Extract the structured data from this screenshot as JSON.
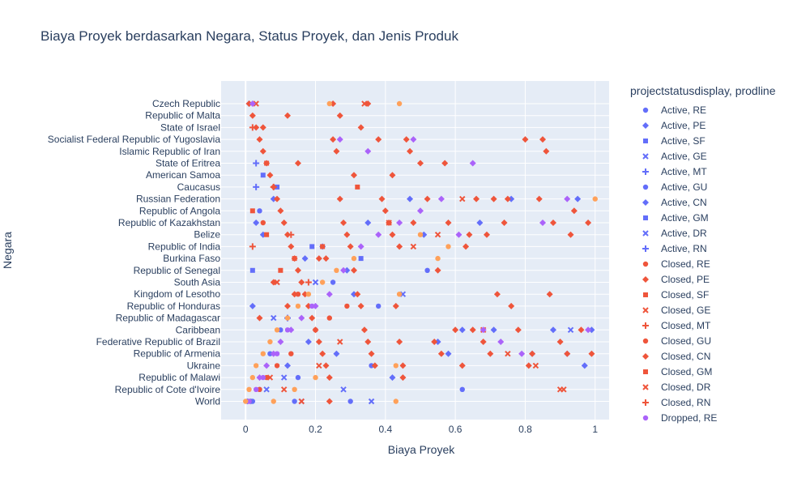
{
  "chart_data": {
    "type": "scatter",
    "title": "Biaya Proyek berdasarkan Negara, Status Proyek, dan Jenis Produk",
    "xlabel": "Biaya Proyek",
    "ylabel": "Negara",
    "xlim": [
      -0.07,
      1.04
    ],
    "x_ticks": [
      0,
      0.2,
      0.4,
      0.6,
      0.8,
      1
    ],
    "x_tick_labels": [
      "0",
      "0.2",
      "0.4",
      "0.6",
      "0.8",
      "1"
    ],
    "y_categories": [
      "Czech Republic",
      "Republic of Malta",
      "State of Israel",
      "Socialist Federal Republic of Yugoslavia",
      "Islamic Republic of Iran",
      "State of Eritrea",
      "American Samoa",
      "Caucasus",
      "Russian Federation",
      "Republic of Angola",
      "Republic of Kazakhstan",
      "Belize",
      "Republic of India",
      "Burkina Faso",
      "Republic of Senegal",
      "South Asia",
      "Kingdom of Lesotho",
      "Republic of Honduras",
      "Republic of Madagascar",
      "Caribbean",
      "Federative Republic of Brazil",
      "Republic of Armenia",
      "Ukraine",
      "Republic of Malawi",
      "Republic of Cote d'Ivoire",
      "World"
    ],
    "grid": true,
    "legend_title": "projectstatusdisplay, prodline",
    "legend_position": "right",
    "series": [
      {
        "name": "Active, RE",
        "color": "#636efa",
        "marker": "circle",
        "x": [
          0.005,
          0.02,
          0.04,
          0.07,
          0.1,
          0.14,
          0.15,
          0.3,
          0.36,
          0.38,
          0.52,
          0.62
        ],
        "y": [
          "World",
          "World",
          "Republic of Cote d'Ivoire",
          "Republic of Armenia",
          "Caribbean",
          "World",
          "Republic of Malawi",
          "World",
          "Ukraine",
          "Republic of Honduras",
          "Republic of Senegal",
          "Republic of Cote d'Ivoire"
        ]
      },
      {
        "name": "Active, PE",
        "color": "#636efa",
        "marker": "diamond",
        "x": [
          0.01,
          0.03,
          0.05,
          0.08,
          0.12,
          0.18,
          0.22,
          0.26,
          0.31,
          0.35,
          0.42,
          0.47,
          0.51,
          0.55,
          0.58,
          0.62,
          0.67,
          0.71,
          0.76,
          0.82,
          0.88,
          0.92,
          0.95,
          0.99,
          0.97
        ],
        "y": [
          "Czech Republic",
          "Republic of Kazakhstan",
          "Belize",
          "Russian Federation",
          "Ukraine",
          "Federative Republic of Brazil",
          "Republic of India",
          "Republic of Armenia",
          "Kingdom of Lesotho",
          "Republic of Kazakhstan",
          "Republic of Malawi",
          "Russian Federation",
          "Belize",
          "Federative Republic of Brazil",
          "Republic of Armenia",
          "Caribbean",
          "Republic of Kazakhstan",
          "Caribbean",
          "Russian Federation",
          "Republic of Armenia",
          "Caribbean",
          "Republic of Armenia",
          "Russian Federation",
          "Caribbean",
          "Ukraine"
        ]
      },
      {
        "name": "Active, SF",
        "color": "#636efa",
        "marker": "square",
        "x": [
          0.02,
          0.09,
          0.19,
          0.33
        ],
        "y": [
          "Republic of Senegal",
          "Caucasus",
          "Republic of India",
          "Burkina Faso"
        ]
      },
      {
        "name": "Active, GE",
        "color": "#636efa",
        "marker": "x",
        "x": [
          0.01,
          0.06,
          0.11,
          0.16,
          0.28,
          0.36,
          0.45,
          0.93
        ],
        "y": [
          "World",
          "Republic of Cote d'Ivoire",
          "Republic of Malawi",
          "World",
          "Republic of Cote d'Ivoire",
          "World",
          "Kingdom of Lesotho",
          "Caribbean"
        ]
      },
      {
        "name": "Active, MT",
        "color": "#636efa",
        "marker": "cross",
        "x": [
          0.03,
          0.12
        ],
        "y": [
          "Caucasus",
          "Republic of Madagascar"
        ]
      },
      {
        "name": "Active, GU",
        "color": "#636efa",
        "marker": "circle",
        "x": [
          0.04,
          0.25
        ],
        "y": [
          "Republic of Angola",
          "South Asia"
        ]
      },
      {
        "name": "Active, CN",
        "color": "#636efa",
        "marker": "diamond",
        "x": [
          0.02,
          0.17,
          0.29
        ],
        "y": [
          "Republic of Honduras",
          "Burkina Faso",
          "Republic of Senegal"
        ]
      },
      {
        "name": "Active, GM",
        "color": "#636efa",
        "marker": "square",
        "x": [
          0.05
        ],
        "y": [
          "American Samoa"
        ]
      },
      {
        "name": "Active, DR",
        "color": "#636efa",
        "marker": "x",
        "x": [
          0.08,
          0.2
        ],
        "y": [
          "Republic of Madagascar",
          "South Asia"
        ]
      },
      {
        "name": "Active, RN",
        "color": "#636efa",
        "marker": "cross",
        "x": [
          0.03
        ],
        "y": [
          "State of Eritrea"
        ]
      },
      {
        "name": "Closed, RE",
        "color": "#ef553b",
        "marker": "circle",
        "x": [
          0.01,
          0.04,
          0.06,
          0.09,
          0.13,
          0.2,
          0.24,
          0.29
        ],
        "y": [
          "World",
          "Republic of Cote d'Ivoire",
          "Republic of Malawi",
          "Ukraine",
          "Republic of Armenia",
          "Caribbean",
          "Republic of Madagascar",
          "Republic of Honduras"
        ]
      },
      {
        "name": "Closed, PE",
        "color": "#ef553b",
        "marker": "diamond",
        "x": [
          0.01,
          0.02,
          0.03,
          0.04,
          0.05,
          0.06,
          0.07,
          0.08,
          0.09,
          0.1,
          0.11,
          0.12,
          0.13,
          0.14,
          0.15,
          0.16,
          0.17,
          0.18,
          0.19,
          0.2,
          0.21,
          0.22,
          0.23,
          0.24,
          0.25,
          0.26,
          0.27,
          0.28,
          0.29,
          0.3,
          0.31,
          0.32,
          0.33,
          0.34,
          0.35,
          0.36,
          0.37,
          0.38,
          0.39,
          0.4,
          0.41,
          0.42,
          0.43,
          0.44,
          0.45,
          0.46,
          0.47,
          0.48,
          0.5,
          0.52,
          0.54,
          0.56,
          0.58,
          0.6,
          0.62,
          0.64,
          0.66,
          0.68,
          0.7,
          0.72,
          0.74,
          0.76,
          0.78,
          0.8,
          0.82,
          0.84,
          0.86,
          0.88,
          0.9,
          0.92,
          0.94,
          0.96,
          0.98,
          0.35,
          0.25,
          0.12,
          0.05,
          0.33,
          0.27,
          0.15,
          0.42,
          0.57,
          0.63,
          0.69,
          0.75,
          0.81,
          0.87,
          0.93,
          0.99,
          0.45,
          0.55,
          0.65,
          0.85,
          0.21,
          0.14,
          0.08,
          0.31,
          0.44,
          0.71,
          0.24
        ],
        "y": [
          "Czech Republic",
          "Republic of Malta",
          "State of Israel",
          "Socialist Federal Republic of Yugoslavia",
          "Islamic Republic of Iran",
          "State of Eritrea",
          "American Samoa",
          "Caucasus",
          "Russian Federation",
          "Republic of Angola",
          "Republic of Kazakhstan",
          "Belize",
          "Republic of India",
          "Burkina Faso",
          "Republic of Senegal",
          "South Asia",
          "Kingdom of Lesotho",
          "Republic of Honduras",
          "Republic of Madagascar",
          "Caribbean",
          "Federative Republic of Brazil",
          "Republic of Armenia",
          "Ukraine",
          "Republic of Malawi",
          "Socialist Federal Republic of Yugoslavia",
          "Islamic Republic of Iran",
          "Russian Federation",
          "Republic of Kazakhstan",
          "Belize",
          "Republic of India",
          "Republic of Senegal",
          "Kingdom of Lesotho",
          "Republic of Honduras",
          "Caribbean",
          "Federative Republic of Brazil",
          "Republic of Armenia",
          "Ukraine",
          "Socialist Federal Republic of Yugoslavia",
          "Russian Federation",
          "Republic of Angola",
          "Republic of Kazakhstan",
          "Belize",
          "Republic of Honduras",
          "Federative Republic of Brazil",
          "Ukraine",
          "Socialist Federal Republic of Yugoslavia",
          "Islamic Republic of Iran",
          "Republic of Kazakhstan",
          "State of Eritrea",
          "Russian Federation",
          "Federative Republic of Brazil",
          "Republic of Armenia",
          "Republic of Kazakhstan",
          "Caribbean",
          "Ukraine",
          "Belize",
          "Russian Federation",
          "Federative Republic of Brazil",
          "Republic of Armenia",
          "Kingdom of Lesotho",
          "Republic of Kazakhstan",
          "Republic of Honduras",
          "Caribbean",
          "Socialist Federal Republic of Yugoslavia",
          "Republic of Armenia",
          "Russian Federation",
          "Islamic Republic of Iran",
          "Republic of Kazakhstan",
          "Federative Republic of Brazil",
          "Republic of Armenia",
          "Republic of Angola",
          "Caribbean",
          "Republic of Kazakhstan",
          "Czech Republic",
          "Czech Republic",
          "Republic of Malta",
          "State of Israel",
          "State of Israel",
          "Republic of Malta",
          "State of Eritrea",
          "American Samoa",
          "State of Eritrea",
          "Republic of India",
          "Belize",
          "Russian Federation",
          "Ukraine",
          "Kingdom of Lesotho",
          "Belize",
          "Republic of Armenia",
          "Republic of Malawi",
          "Republic of Senegal",
          "Caribbean",
          "Socialist Federal Republic of Yugoslavia",
          "Burkina Faso",
          "Kingdom of Lesotho",
          "South Asia",
          "American Samoa",
          "Republic of India",
          "Russian Federation",
          "World"
        ]
      },
      {
        "name": "Closed, SF",
        "color": "#ef553b",
        "marker": "square",
        "x": [
          0.02,
          0.06,
          0.1,
          0.14,
          0.22,
          0.32
        ],
        "y": [
          "Republic of Angola",
          "Belize",
          "Republic of Senegal",
          "Burkina Faso",
          "Republic of India",
          "Caucasus"
        ]
      },
      {
        "name": "Closed, GE",
        "color": "#ef553b",
        "marker": "x",
        "x": [
          0.03,
          0.07,
          0.11,
          0.16,
          0.21,
          0.27,
          0.34,
          0.41,
          0.48,
          0.55,
          0.62,
          0.68,
          0.75,
          0.83,
          0.91
        ],
        "y": [
          "Czech Republic",
          "Republic of Malawi",
          "Republic of Cote d'Ivoire",
          "World",
          "Ukraine",
          "Federative Republic of Brazil",
          "Czech Republic",
          "Republic of Kazakhstan",
          "Republic of India",
          "Belize",
          "Russian Federation",
          "Caribbean",
          "Republic of Armenia",
          "Ukraine",
          "Republic of Cote d'Ivoire"
        ]
      },
      {
        "name": "Closed, MT",
        "color": "#ef553b",
        "marker": "cross",
        "x": [
          0.02,
          0.08,
          0.18
        ],
        "y": [
          "State of Israel",
          "Caucasus",
          "South Asia"
        ]
      },
      {
        "name": "Closed, GU",
        "color": "#ef553b",
        "marker": "circle",
        "x": [
          0.05,
          0.15
        ],
        "y": [
          "Republic of Kazakhstan",
          "Kingdom of Lesotho"
        ]
      },
      {
        "name": "Closed, CN",
        "color": "#ef553b",
        "marker": "diamond",
        "x": [
          0.04,
          0.12,
          0.23
        ],
        "y": [
          "Republic of Madagascar",
          "Republic of Honduras",
          "Burkina Faso"
        ]
      },
      {
        "name": "Closed, GM",
        "color": "#ef553b",
        "marker": "square",
        "x": [
          0.06
        ],
        "y": [
          "State of Eritrea"
        ]
      },
      {
        "name": "Closed, DR",
        "color": "#ef553b",
        "marker": "x",
        "x": [
          0.09,
          0.9
        ],
        "y": [
          "South Asia",
          "Republic of Cote d'Ivoire"
        ]
      },
      {
        "name": "Closed, RN",
        "color": "#ef553b",
        "marker": "cross",
        "x": [
          0.02,
          0.13
        ],
        "y": [
          "Republic of India",
          "Belize"
        ]
      },
      {
        "name": "Dropped, RE",
        "color": "#ab63fa",
        "marker": "circle",
        "x": [
          0.01,
          0.03,
          0.05,
          0.09,
          0.12,
          0.19
        ],
        "y": [
          "World",
          "Republic of Cote d'Ivoire",
          "Republic of Malawi",
          "Republic of Armenia",
          "Caribbean",
          "Republic of Honduras"
        ]
      }
    ],
    "extra_series_colors": [
      "#ab63fa",
      "#ffa15a"
    ],
    "extra_points": [
      {
        "color": "#ab63fa",
        "marker": "diamond",
        "x": [
          0.02,
          0.04,
          0.06,
          0.08,
          0.1,
          0.13,
          0.16,
          0.2,
          0.24,
          0.28,
          0.33,
          0.38,
          0.44,
          0.5,
          0.56,
          0.61,
          0.68,
          0.73,
          0.79,
          0.85,
          0.92,
          0.98,
          0.27,
          0.35,
          0.48,
          0.65
        ],
        "y": [
          "Czech Republic",
          "Republic of Malawi",
          "Ukraine",
          "Republic of Armenia",
          "Federative Republic of Brazil",
          "Caribbean",
          "Republic of Madagascar",
          "Republic of Honduras",
          "Kingdom of Lesotho",
          "Republic of Senegal",
          "Republic of India",
          "Belize",
          "Republic of Kazakhstan",
          "Republic of Angola",
          "Russian Federation",
          "Belize",
          "Caribbean",
          "Federative Republic of Brazil",
          "Republic of Armenia",
          "Republic of Kazakhstan",
          "Russian Federation",
          "Caribbean",
          "Socialist Federal Republic of Yugoslavia",
          "Islamic Republic of Iran",
          "Socialist Federal Republic of Yugoslavia",
          "State of Eritrea"
        ]
      },
      {
        "color": "#ffa15a",
        "marker": "circle",
        "x": [
          0.0,
          0.01,
          0.02,
          0.03,
          0.05,
          0.07,
          0.09,
          0.12,
          0.15,
          0.18,
          0.22,
          0.26,
          0.31,
          0.43,
          0.24,
          0.44,
          0.43,
          0.44,
          0.5,
          0.55,
          0.58,
          1.0,
          0.08,
          0.14,
          0.2
        ],
        "y": [
          "World",
          "Republic of Cote d'Ivoire",
          "Republic of Malawi",
          "Ukraine",
          "Republic of Armenia",
          "Federative Republic of Brazil",
          "Caribbean",
          "Republic of Madagascar",
          "Republic of Honduras",
          "Kingdom of Lesotho",
          "South Asia",
          "Republic of Senegal",
          "Burkina Faso",
          "World",
          "Czech Republic",
          "Czech Republic",
          "Ukraine",
          "Kingdom of Lesotho",
          "Belize",
          "Burkina Faso",
          "Republic of India",
          "Russian Federation",
          "World",
          "Republic of Cote d'Ivoire",
          "Republic of Malawi"
        ]
      }
    ]
  }
}
